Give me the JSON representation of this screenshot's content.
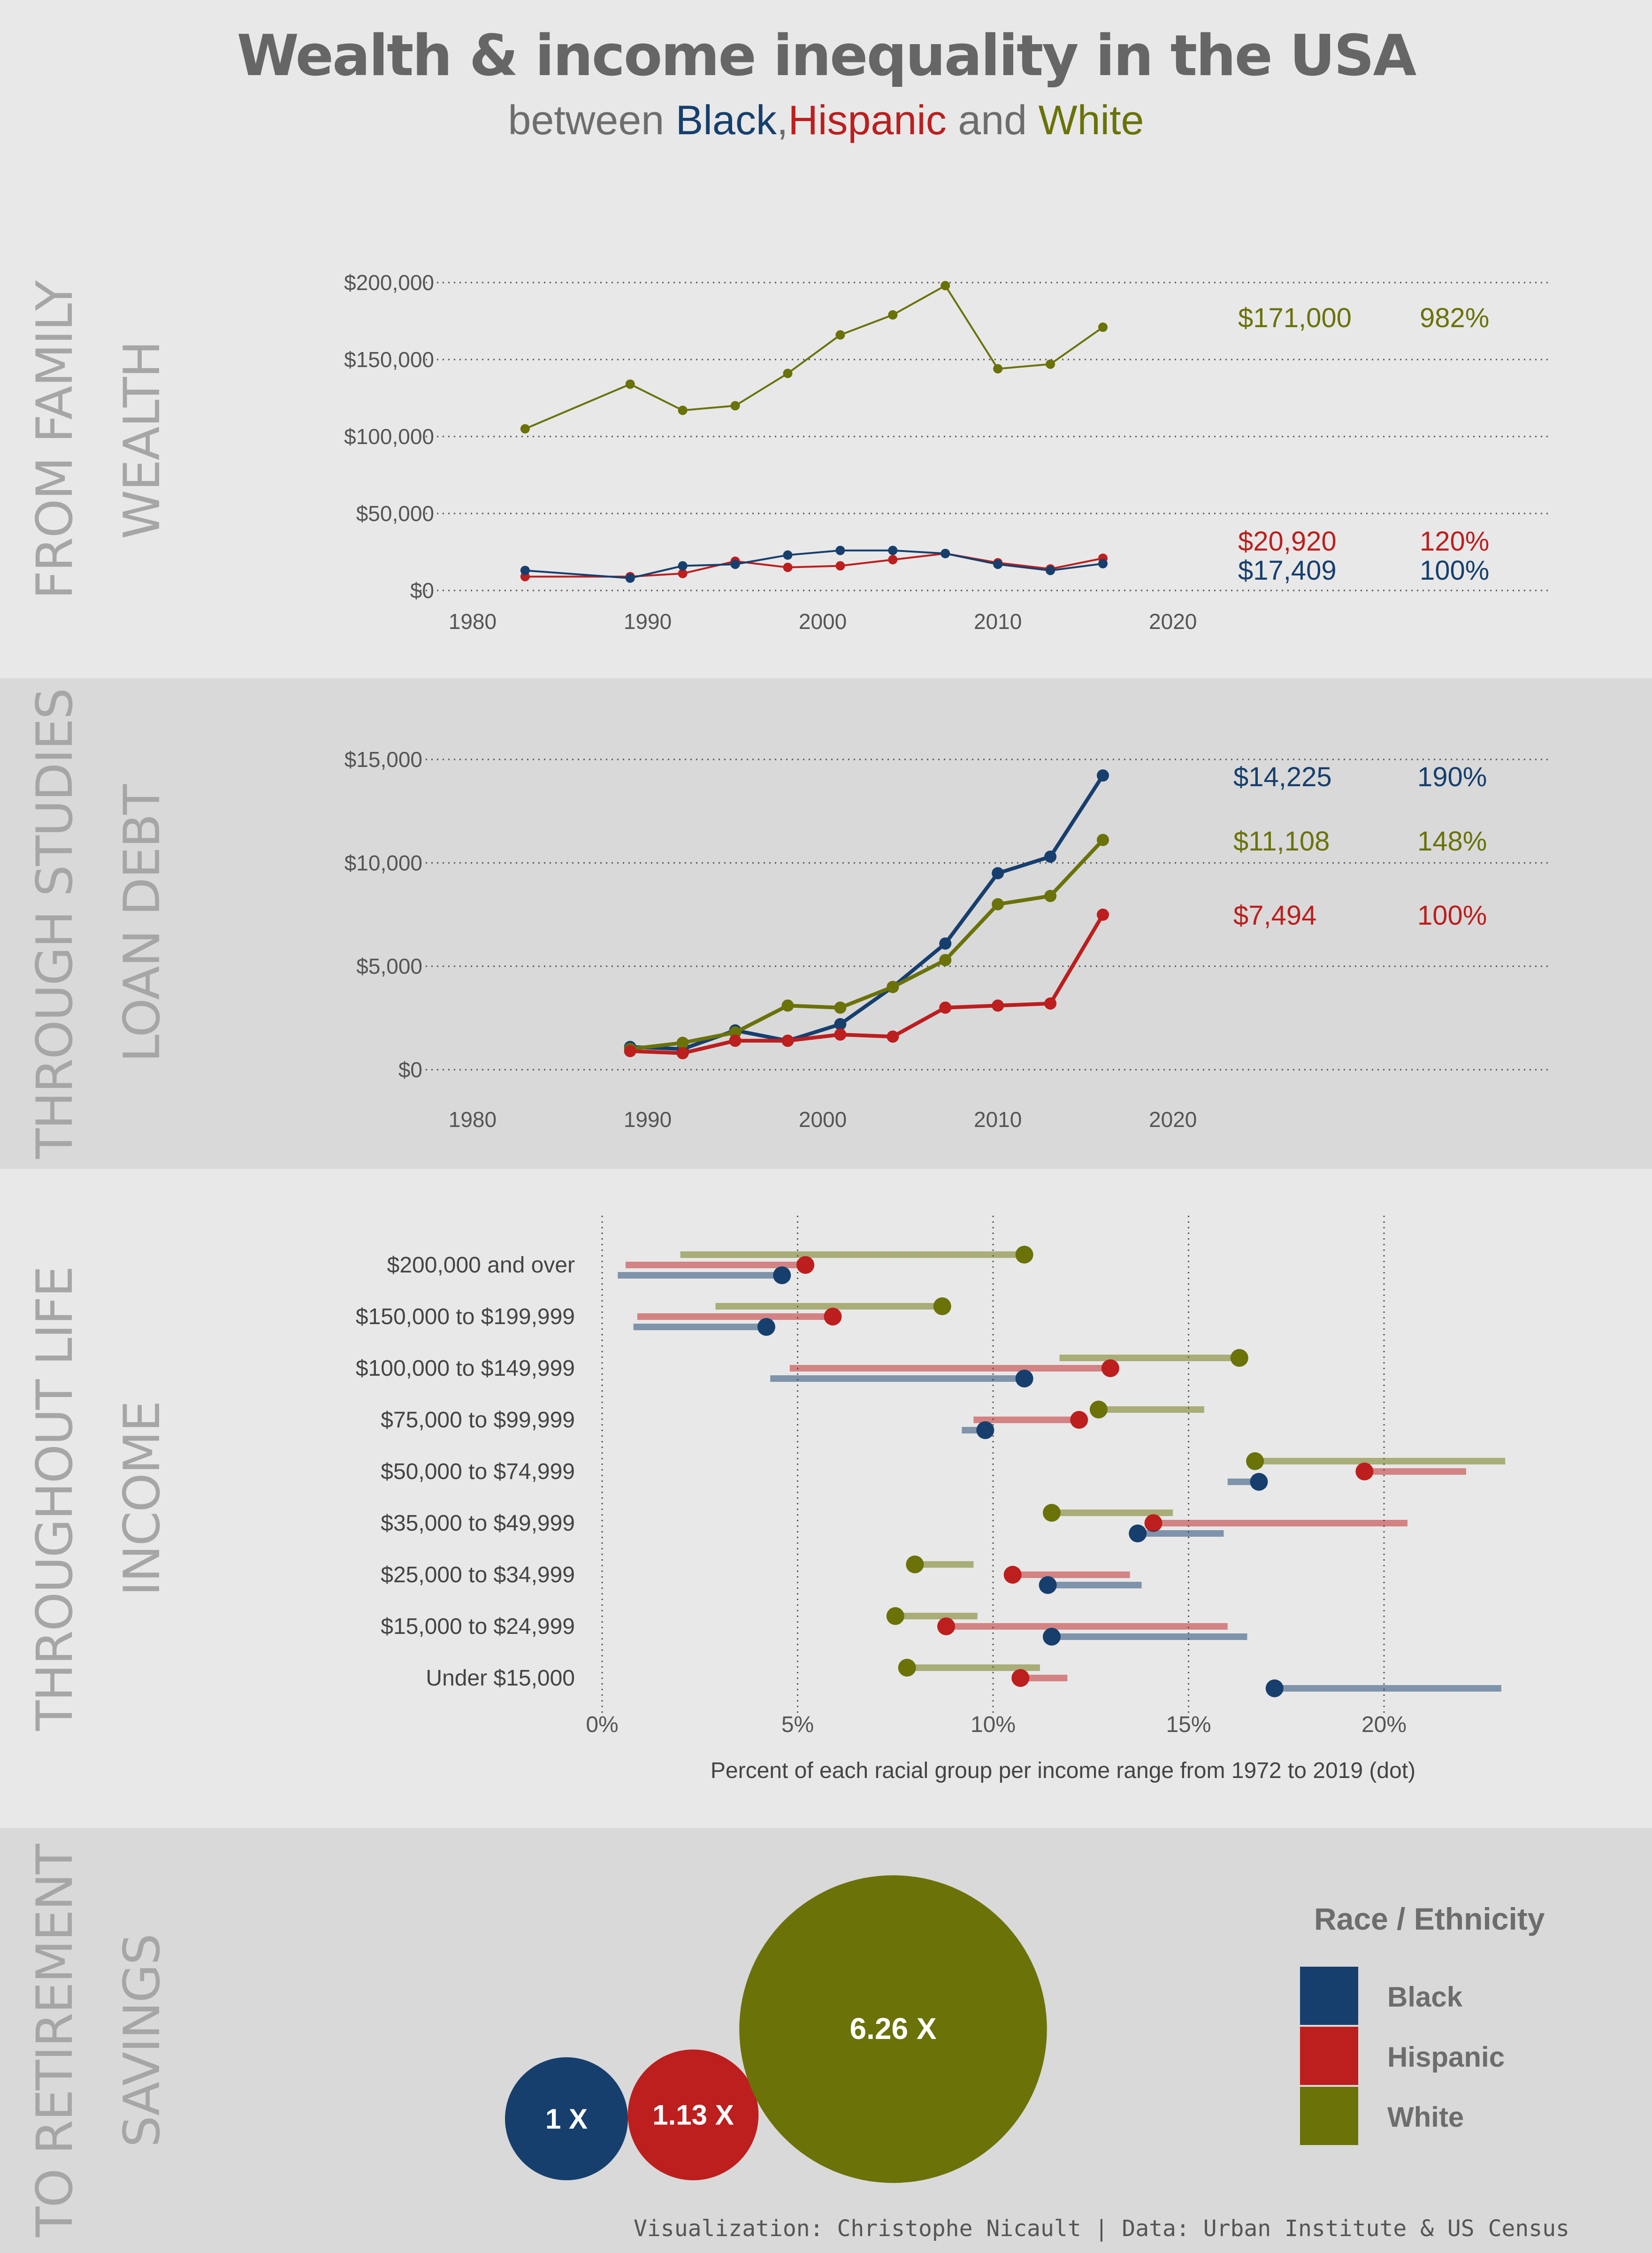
{
  "header": {
    "title": "Wealth & income inequality in the USA",
    "subtitle_prefix": "between ",
    "subtitle_black": "Black",
    "subtitle_sep1": ",",
    "subtitle_hispanic": "Hispanic",
    "subtitle_and": " and ",
    "subtitle_white": "White"
  },
  "sections": {
    "wealth": {
      "line1": "FROM FAMILY",
      "line2": "WEALTH"
    },
    "debt": {
      "line1": "THROUGH STUDIES",
      "line2": "LOAN DEBT"
    },
    "income": {
      "line1": "THROUGHOUT LIFE",
      "line2": "INCOME"
    },
    "savings": {
      "line1": "TO RETIREMENT",
      "line2": "SAVINGS"
    }
  },
  "colors": {
    "black": "#163f6e",
    "hispanic": "#bd1e1e",
    "white": "#6a7208"
  },
  "chart_data": [
    {
      "id": "wealth",
      "type": "line",
      "x": [
        1983,
        1989,
        1992,
        1995,
        1998,
        2001,
        2004,
        2007,
        2010,
        2013,
        2016
      ],
      "xticks": [
        1980,
        1990,
        2000,
        2010,
        2020
      ],
      "xlim": [
        1977,
        2042
      ],
      "yticks": [
        0,
        50000,
        100000,
        150000,
        200000
      ],
      "ytick_labels": [
        "$0",
        "$50,000",
        "$100,000",
        "$150,000",
        "$200,000"
      ],
      "ylim": [
        0,
        200000
      ],
      "grid": "horizontal dotted",
      "series": [
        {
          "key": "white",
          "color": "#6a7208",
          "values": [
            105000,
            134000,
            117000,
            120000,
            141000,
            166000,
            179000,
            198000,
            144000,
            147000,
            171000
          ],
          "end_label": "$171,000",
          "ratio_label": "982%"
        },
        {
          "key": "hispanic",
          "color": "#bd1e1e",
          "values": [
            9000,
            9000,
            11000,
            19000,
            15000,
            16000,
            20000,
            24000,
            18000,
            14000,
            20920
          ],
          "end_label": "$20,920",
          "ratio_label": "120%"
        },
        {
          "key": "black",
          "color": "#163f6e",
          "values": [
            13000,
            8000,
            16000,
            17000,
            23000,
            26000,
            26000,
            24000,
            17000,
            13000,
            17409
          ],
          "end_label": "$17,409",
          "ratio_label": "100%"
        }
      ]
    },
    {
      "id": "debt",
      "type": "line",
      "x": [
        1989,
        1992,
        1995,
        1998,
        2001,
        2004,
        2007,
        2010,
        2013,
        2016
      ],
      "xticks": [
        1980,
        1990,
        2000,
        2010,
        2020
      ],
      "xlim": [
        1977,
        2042
      ],
      "yticks": [
        0,
        5000,
        10000,
        15000
      ],
      "ytick_labels": [
        "$0",
        "$5,000",
        "$10,000",
        "$15,000"
      ],
      "ylim": [
        0,
        15000
      ],
      "grid": "horizontal dotted",
      "series": [
        {
          "key": "black",
          "color": "#163f6e",
          "values": [
            1100,
            1000,
            1900,
            1400,
            2200,
            4000,
            6100,
            9500,
            10300,
            14225
          ],
          "end_label": "$14,225",
          "ratio_label": "190%"
        },
        {
          "key": "white",
          "color": "#6a7208",
          "values": [
            1000,
            1300,
            1800,
            3100,
            3000,
            4000,
            5300,
            8000,
            8400,
            11108
          ],
          "end_label": "$11,108",
          "ratio_label": "148%"
        },
        {
          "key": "hispanic",
          "color": "#bd1e1e",
          "values": [
            900,
            800,
            1400,
            1400,
            1700,
            1600,
            3000,
            3100,
            3200,
            7494
          ],
          "end_label": "$7,494",
          "ratio_label": "100%"
        }
      ]
    },
    {
      "id": "income",
      "type": "dumbbell",
      "categories": [
        "$200,000 and over",
        "$150,000 to $199,999",
        "$100,000 to $149,999",
        "$75,000 to $99,999",
        "$50,000 to $74,999",
        "$35,000 to $49,999",
        "$25,000 to $34,999",
        "$15,000 to $24,999",
        "Under $15,000"
      ],
      "xticks": [
        0,
        5,
        10,
        15,
        20
      ],
      "xtick_labels": [
        "0%",
        "5%",
        "10%",
        "15%",
        "20%"
      ],
      "xlim": [
        0,
        23.5
      ],
      "xlabel": "Percent of each racial group per income range from 1972 to 2019 (dot)",
      "grid": "vertical dotted",
      "series": [
        {
          "key": "white",
          "color": "#6a7208",
          "range_start": [
            2.0,
            2.9,
            11.7,
            15.4,
            23.1,
            14.6,
            9.5,
            9.6,
            11.2
          ],
          "dot": [
            10.8,
            8.7,
            16.3,
            12.7,
            16.7,
            11.5,
            8.0,
            7.5,
            7.8
          ]
        },
        {
          "key": "hispanic",
          "color": "#bd1e1e",
          "range_start": [
            0.6,
            0.9,
            4.8,
            9.5,
            22.1,
            20.6,
            13.5,
            16.0,
            11.9
          ],
          "dot": [
            5.2,
            5.9,
            13.0,
            12.2,
            19.5,
            14.1,
            10.5,
            8.8,
            10.7
          ]
        },
        {
          "key": "black",
          "color": "#163f6e",
          "range_start": [
            0.4,
            0.8,
            4.3,
            9.2,
            16.0,
            15.9,
            13.8,
            16.5,
            23.0
          ],
          "dot": [
            4.6,
            4.2,
            10.8,
            9.8,
            16.8,
            13.7,
            11.4,
            11.5,
            17.2
          ]
        }
      ]
    },
    {
      "id": "savings",
      "type": "bubble",
      "series": [
        {
          "key": "black",
          "color": "#163f6e",
          "value": 1,
          "label": "1 X"
        },
        {
          "key": "hispanic",
          "color": "#bd1e1e",
          "value": 1.13,
          "label": "1.13 X"
        },
        {
          "key": "white",
          "color": "#6a7208",
          "value": 6.26,
          "label": "6.26 X"
        }
      ]
    }
  ],
  "legend": {
    "title": "Race / Ethnicity",
    "items": [
      {
        "label": "Black",
        "color": "#163f6e"
      },
      {
        "label": "Hispanic",
        "color": "#bd1e1e"
      },
      {
        "label": "White",
        "color": "#6a7208"
      }
    ]
  },
  "footer": "Visualization: Christophe Nicault | Data: Urban Institute & US Census"
}
